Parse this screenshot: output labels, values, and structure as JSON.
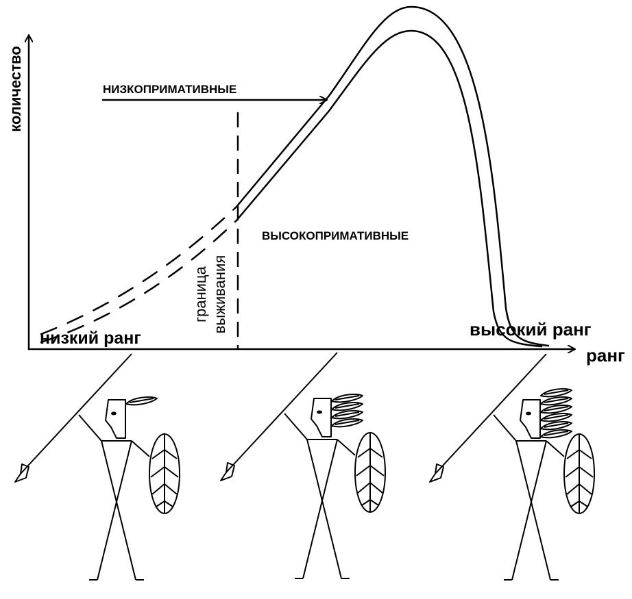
{
  "axes": {
    "y_label": "количество",
    "x_label": "ранг"
  },
  "curve_labels": {
    "low_rank": "низкий ранг",
    "high_rank": "высокий ранг"
  },
  "regions": {
    "low_primitive": "НИЗКОПРИМАТИВНЫЕ",
    "high_primitive": "ВЫСОКОПРИМАТИВНЫЕ"
  },
  "boundary": {
    "lines": [
      "граница",
      "выживания"
    ]
  }
}
